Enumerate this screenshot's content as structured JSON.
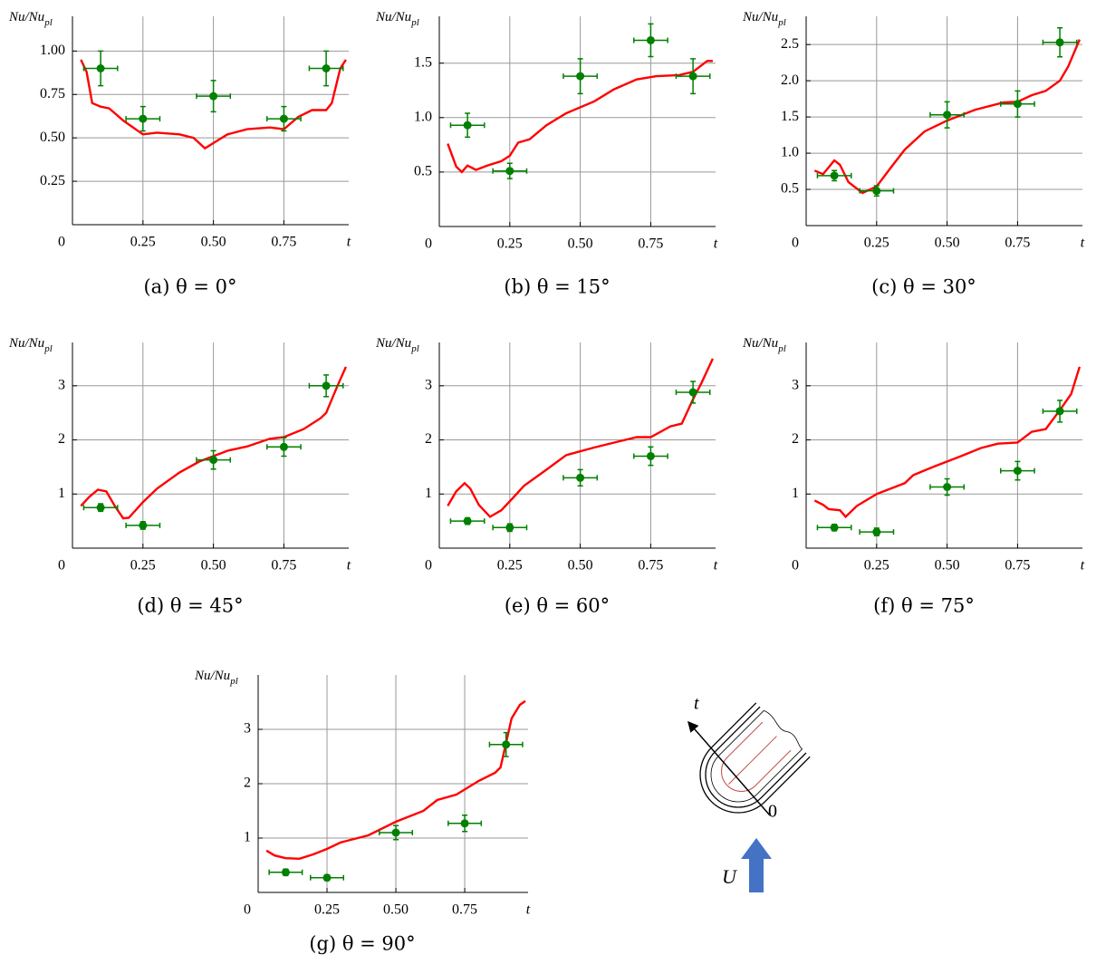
{
  "chart_data": [
    {
      "type": "line",
      "caption": "(a) θ = 0°",
      "ylabel": "Nu/Nu",
      "ylabel_sub": "pl",
      "xlabel": "t",
      "xlim": [
        0,
        0.98
      ],
      "ylim": [
        0,
        1.2
      ],
      "xticks": [
        0,
        0.25,
        {
          "value": 0.5,
          "label": "0.50"
        },
        0.75
      ],
      "yticks": [
        0.25,
        {
          "value": 0.5,
          "label": "0.50"
        },
        0.75,
        {
          "value": 1,
          "label": "1.00"
        }
      ],
      "grid": true,
      "series": [
        {
          "type": "line",
          "color": "#ff0000",
          "x": [
            0.03,
            0.05,
            0.07,
            0.1,
            0.13,
            0.18,
            0.25,
            0.3,
            0.38,
            0.43,
            0.47,
            0.5,
            0.55,
            0.62,
            0.7,
            0.75,
            0.8,
            0.85,
            0.9,
            0.92,
            0.95,
            0.97
          ],
          "values": [
            0.95,
            0.88,
            0.7,
            0.68,
            0.67,
            0.6,
            0.52,
            0.53,
            0.52,
            0.5,
            0.44,
            0.47,
            0.52,
            0.55,
            0.56,
            0.55,
            0.62,
            0.66,
            0.66,
            0.7,
            0.9,
            0.95
          ]
        },
        {
          "type": "scatter",
          "color": "#008000",
          "x": [
            0.1,
            0.25,
            0.5,
            0.75,
            0.9
          ],
          "values": [
            0.9,
            0.61,
            0.74,
            0.61,
            0.9
          ],
          "x_error": [
            0.06,
            0.06,
            0.06,
            0.06,
            0.06
          ],
          "y_error": [
            0.1,
            0.07,
            0.09,
            0.07,
            0.1
          ]
        }
      ]
    },
    {
      "type": "line",
      "caption": "(b) θ = 15°",
      "ylabel": "Nu/Nu",
      "ylabel_sub": "pl",
      "xlabel": "t",
      "xlim": [
        0,
        0.98
      ],
      "ylim": [
        0,
        1.93
      ],
      "xticks": [
        0,
        0.25,
        {
          "value": 0.5,
          "label": "0.50"
        },
        0.75
      ],
      "yticks": [
        0.5,
        {
          "value": 1,
          "label": "1.0"
        },
        1.5
      ],
      "grid": true,
      "series": [
        {
          "type": "line",
          "color": "#ff0000",
          "x": [
            0.03,
            0.06,
            0.08,
            0.1,
            0.13,
            0.17,
            0.22,
            0.25,
            0.28,
            0.32,
            0.38,
            0.45,
            0.55,
            0.62,
            0.7,
            0.77,
            0.85,
            0.9,
            0.95,
            0.97
          ],
          "values": [
            0.76,
            0.55,
            0.5,
            0.56,
            0.52,
            0.56,
            0.6,
            0.65,
            0.77,
            0.8,
            0.93,
            1.04,
            1.15,
            1.26,
            1.35,
            1.38,
            1.39,
            1.42,
            1.52,
            1.52
          ]
        },
        {
          "type": "scatter",
          "color": "#008000",
          "x": [
            0.1,
            0.25,
            0.5,
            0.75,
            0.9
          ],
          "values": [
            0.93,
            0.51,
            1.38,
            1.71,
            1.38
          ],
          "x_error": [
            0.06,
            0.06,
            0.06,
            0.06,
            0.06
          ],
          "y_error": [
            0.11,
            0.07,
            0.16,
            0.15,
            0.16
          ]
        }
      ]
    },
    {
      "type": "line",
      "caption": "(c) θ = 30°",
      "ylabel": "Nu/Nu",
      "ylabel_sub": "pl",
      "xlabel": "t",
      "xlim": [
        0,
        0.98
      ],
      "ylim": [
        0,
        2.89
      ],
      "xticks": [
        0,
        0.25,
        {
          "value": 0.5,
          "label": "0.50"
        },
        0.75
      ],
      "yticks": [
        0.5,
        {
          "value": 1,
          "label": "1.0"
        },
        1.5,
        {
          "value": 2,
          "label": "2.0"
        },
        2.5
      ],
      "grid": true,
      "series": [
        {
          "type": "line",
          "color": "#ff0000",
          "x": [
            0.03,
            0.06,
            0.1,
            0.12,
            0.15,
            0.2,
            0.25,
            0.3,
            0.35,
            0.42,
            0.5,
            0.6,
            0.7,
            0.75,
            0.8,
            0.85,
            0.9,
            0.93,
            0.97
          ],
          "values": [
            0.76,
            0.71,
            0.9,
            0.84,
            0.6,
            0.45,
            0.54,
            0.8,
            1.05,
            1.3,
            1.45,
            1.6,
            1.7,
            1.71,
            1.8,
            1.86,
            2.0,
            2.2,
            2.57
          ]
        },
        {
          "type": "scatter",
          "color": "#008000",
          "x": [
            0.1,
            0.25,
            0.5,
            0.75,
            0.9
          ],
          "values": [
            0.69,
            0.48,
            1.53,
            1.68,
            2.53
          ],
          "x_error": [
            0.06,
            0.06,
            0.06,
            0.06,
            0.06
          ],
          "y_error": [
            0.07,
            0.07,
            0.18,
            0.18,
            0.2
          ]
        }
      ]
    },
    {
      "type": "line",
      "caption": "(d) θ = 45°",
      "ylabel": "Nu/Nu",
      "ylabel_sub": "pl",
      "xlabel": "t",
      "xlim": [
        0,
        0.98
      ],
      "ylim": [
        0,
        3.8
      ],
      "xticks": [
        0,
        0.25,
        {
          "value": 0.5,
          "label": "0.50"
        },
        0.75
      ],
      "yticks": [
        1,
        2,
        3
      ],
      "grid": true,
      "series": [
        {
          "type": "line",
          "color": "#ff0000",
          "x": [
            0.03,
            0.06,
            0.09,
            0.12,
            0.15,
            0.18,
            0.2,
            0.25,
            0.3,
            0.38,
            0.45,
            0.55,
            0.62,
            0.7,
            0.75,
            0.82,
            0.88,
            0.9,
            0.94,
            0.97
          ],
          "values": [
            0.78,
            0.95,
            1.08,
            1.05,
            0.78,
            0.55,
            0.56,
            0.85,
            1.1,
            1.4,
            1.6,
            1.8,
            1.88,
            2.02,
            2.05,
            2.2,
            2.4,
            2.5,
            3.0,
            3.35
          ]
        },
        {
          "type": "scatter",
          "color": "#008000",
          "x": [
            0.1,
            0.25,
            0.5,
            0.75,
            0.9
          ],
          "values": [
            0.75,
            0.42,
            1.63,
            1.87,
            3.0
          ],
          "x_error": [
            0.06,
            0.06,
            0.06,
            0.06,
            0.06
          ],
          "y_error": [
            0.07,
            0.07,
            0.17,
            0.17,
            0.2
          ]
        }
      ]
    },
    {
      "type": "line",
      "caption": "(e) θ = 60°",
      "ylabel": "Nu/Nu",
      "ylabel_sub": "pl",
      "xlabel": "t",
      "xlim": [
        0,
        0.98
      ],
      "ylim": [
        0,
        3.8
      ],
      "xticks": [
        0,
        0.25,
        {
          "value": 0.5,
          "label": "0.50"
        },
        0.75
      ],
      "yticks": [
        1,
        2,
        3
      ],
      "grid": true,
      "series": [
        {
          "type": "line",
          "color": "#ff0000",
          "x": [
            0.03,
            0.06,
            0.09,
            0.11,
            0.14,
            0.18,
            0.22,
            0.26,
            0.3,
            0.38,
            0.45,
            0.55,
            0.62,
            0.7,
            0.75,
            0.82,
            0.86,
            0.9,
            0.93,
            0.97
          ],
          "values": [
            0.78,
            1.05,
            1.2,
            1.1,
            0.8,
            0.58,
            0.7,
            0.92,
            1.15,
            1.45,
            1.72,
            1.86,
            1.95,
            2.05,
            2.05,
            2.25,
            2.3,
            2.75,
            3.05,
            3.5
          ]
        },
        {
          "type": "scatter",
          "color": "#008000",
          "x": [
            0.1,
            0.25,
            0.5,
            0.75,
            0.9
          ],
          "values": [
            0.5,
            0.38,
            1.3,
            1.7,
            2.88
          ],
          "x_error": [
            0.06,
            0.06,
            0.06,
            0.06,
            0.06
          ],
          "y_error": [
            0.06,
            0.07,
            0.15,
            0.17,
            0.2
          ]
        }
      ]
    },
    {
      "type": "line",
      "caption": "(f) θ = 75°",
      "ylabel": "Nu/Nu",
      "ylabel_sub": "pl",
      "xlabel": "t",
      "xlim": [
        0,
        0.98
      ],
      "ylim": [
        0,
        3.8
      ],
      "xticks": [
        0,
        0.25,
        {
          "value": 0.5,
          "label": "0.50"
        },
        0.75
      ],
      "yticks": [
        1,
        2,
        3
      ],
      "grid": true,
      "series": [
        {
          "type": "line",
          "color": "#ff0000",
          "x": [
            0.03,
            0.06,
            0.08,
            0.12,
            0.14,
            0.18,
            0.25,
            0.3,
            0.35,
            0.38,
            0.45,
            0.55,
            0.62,
            0.68,
            0.75,
            0.8,
            0.85,
            0.9,
            0.94,
            0.97
          ],
          "values": [
            0.88,
            0.8,
            0.72,
            0.7,
            0.58,
            0.78,
            1.0,
            1.1,
            1.2,
            1.35,
            1.5,
            1.7,
            1.85,
            1.93,
            1.95,
            2.15,
            2.2,
            2.55,
            2.85,
            3.35
          ]
        },
        {
          "type": "scatter",
          "color": "#008000",
          "x": [
            0.1,
            0.25,
            0.5,
            0.75,
            0.9
          ],
          "values": [
            0.38,
            0.3,
            1.13,
            1.43,
            2.53
          ],
          "x_error": [
            0.06,
            0.06,
            0.06,
            0.06,
            0.06
          ],
          "y_error": [
            0.06,
            0.07,
            0.15,
            0.17,
            0.2
          ]
        }
      ]
    },
    {
      "type": "line",
      "caption": "(g) θ = 90°",
      "ylabel": "Nu/Nu",
      "ylabel_sub": "pl",
      "xlabel": "t",
      "xlim": [
        0,
        0.98
      ],
      "ylim": [
        0,
        4.0
      ],
      "xticks": [
        0,
        0.25,
        {
          "value": 0.5,
          "label": "0.50"
        },
        0.75
      ],
      "yticks": [
        1,
        2,
        3
      ],
      "grid": true,
      "series": [
        {
          "type": "line",
          "color": "#ff0000",
          "x": [
            0.03,
            0.06,
            0.1,
            0.15,
            0.2,
            0.25,
            0.3,
            0.4,
            0.5,
            0.6,
            0.65,
            0.72,
            0.8,
            0.86,
            0.88,
            0.9,
            0.92,
            0.95,
            0.97
          ],
          "values": [
            0.77,
            0.68,
            0.63,
            0.62,
            0.7,
            0.8,
            0.92,
            1.05,
            1.3,
            1.5,
            1.7,
            1.8,
            2.05,
            2.2,
            2.3,
            2.75,
            3.2,
            3.45,
            3.52
          ]
        },
        {
          "type": "scatter",
          "color": "#008000",
          "x": [
            0.1,
            0.25,
            0.5,
            0.75,
            0.9
          ],
          "values": [
            0.37,
            0.27,
            1.1,
            1.27,
            2.72
          ],
          "x_error": [
            0.06,
            0.06,
            0.06,
            0.06,
            0.06
          ],
          "y_error": [
            0.06,
            0.05,
            0.13,
            0.15,
            0.22
          ]
        }
      ]
    }
  ],
  "diagram": {
    "t_label": "t",
    "origin_label": "0",
    "flow_label": "U"
  }
}
